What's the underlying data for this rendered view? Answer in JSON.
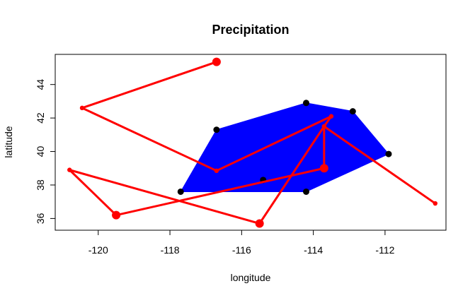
{
  "chart_data": {
    "type": "scatter",
    "title": "Precipitation",
    "xlabel": "longitude",
    "ylabel": "latitude",
    "xlim": [
      -121.2,
      -110.3
    ],
    "ylim": [
      35.3,
      45.8
    ],
    "xticks": [
      -120,
      -118,
      -116,
      -114,
      -112
    ],
    "yticks": [
      36,
      38,
      40,
      42,
      44
    ],
    "grid": false,
    "colors": {
      "hull": "#0000ff",
      "points": "#000000",
      "path": "#ff0000"
    },
    "hull_polygon": [
      [
        -117.7,
        37.6
      ],
      [
        -116.7,
        41.3
      ],
      [
        -114.2,
        42.9
      ],
      [
        -112.9,
        42.4
      ],
      [
        -111.9,
        39.85
      ],
      [
        -114.2,
        37.6
      ]
    ],
    "black_points": [
      [
        -117.7,
        37.6
      ],
      [
        -116.7,
        41.3
      ],
      [
        -114.2,
        42.9
      ],
      [
        -112.9,
        42.4
      ],
      [
        -111.9,
        39.85
      ],
      [
        -114.2,
        37.6
      ],
      [
        -115.4,
        38.3
      ]
    ],
    "red_path": [
      [
        -116.7,
        45.35
      ],
      [
        -120.45,
        42.6
      ],
      [
        -116.7,
        38.85
      ],
      [
        -113.5,
        42.1
      ],
      [
        -113.7,
        41.5
      ],
      [
        -113.7,
        39.0
      ],
      [
        -119.5,
        36.2
      ],
      [
        -120.8,
        38.9
      ],
      [
        -115.5,
        35.7
      ],
      [
        -113.7,
        41.5
      ],
      [
        -110.6,
        36.9
      ]
    ],
    "red_large_points": [
      [
        -116.7,
        45.35
      ],
      [
        -113.7,
        39.0
      ],
      [
        -119.5,
        36.2
      ],
      [
        -115.5,
        35.7
      ]
    ],
    "red_small_points": [
      [
        -120.45,
        42.6
      ],
      [
        -116.7,
        38.85
      ],
      [
        -113.5,
        42.1
      ],
      [
        -113.7,
        41.5
      ],
      [
        -120.8,
        38.9
      ],
      [
        -110.6,
        36.9
      ]
    ]
  }
}
